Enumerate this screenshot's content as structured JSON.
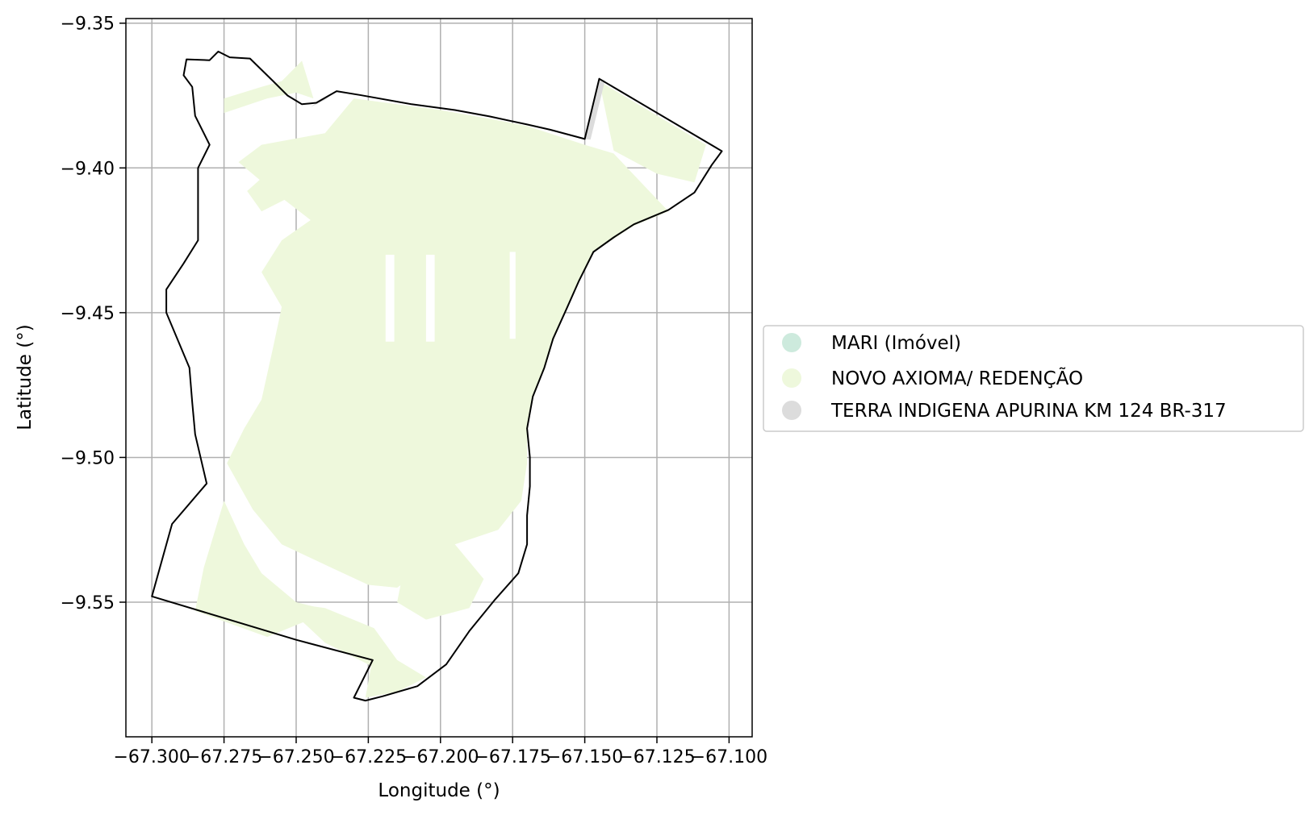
{
  "chart_data": {
    "type": "map",
    "xlabel": "Longitude (°)",
    "ylabel": "Latitude (°)",
    "xlim": [
      -67.309,
      -67.092
    ],
    "ylim": [
      -9.5965,
      -9.3484
    ],
    "x_ticks": [
      -67.3,
      -67.275,
      -67.25,
      -67.225,
      -67.2,
      -67.175,
      -67.15,
      -67.125,
      -67.1
    ],
    "x_tick_labels": [
      "−67.300",
      "−67.275",
      "−67.250",
      "−67.225",
      "−67.200",
      "−67.175",
      "−67.150",
      "−67.125",
      "−67.100"
    ],
    "y_ticks": [
      -9.35,
      -9.4,
      -9.45,
      -9.5,
      -9.55
    ],
    "y_tick_labels": [
      "−9.35",
      "−9.40",
      "−9.45",
      "−9.50",
      "−9.55"
    ],
    "grid": true,
    "legend_position": "outside-right",
    "legend": [
      {
        "label": "MARI (Imóvel)",
        "color": "#cdeadd"
      },
      {
        "label": "NOVO AXIOMA/ REDENÇÃO",
        "color": "#eef8dc"
      },
      {
        "label": "TERRA INDIGENA APURINA KM 124 BR-317",
        "color": "#dcdcdc"
      }
    ],
    "boundary_outline": [
      [
        -67.236,
        -9.3735
      ],
      [
        -67.228,
        -9.3748
      ],
      [
        -67.21,
        -9.378
      ],
      [
        -67.195,
        -9.38
      ],
      [
        -67.183,
        -9.3822
      ],
      [
        -67.17,
        -9.385
      ],
      [
        -67.162,
        -9.3868
      ],
      [
        -67.15,
        -9.39
      ],
      [
        -67.145,
        -9.3692
      ],
      [
        -67.1025,
        -9.3942
      ],
      [
        -67.106,
        -9.399
      ],
      [
        -67.112,
        -9.4085
      ],
      [
        -67.121,
        -9.4145
      ],
      [
        -67.133,
        -9.4195
      ],
      [
        -67.14,
        -9.424
      ],
      [
        -67.147,
        -9.429
      ],
      [
        -67.152,
        -9.439
      ],
      [
        -67.156,
        -9.448
      ],
      [
        -67.161,
        -9.459
      ],
      [
        -67.164,
        -9.469
      ],
      [
        -67.168,
        -9.479
      ],
      [
        -67.17,
        -9.49
      ],
      [
        -67.169,
        -9.5
      ],
      [
        -67.169,
        -9.51
      ],
      [
        -67.17,
        -9.52
      ],
      [
        -67.17,
        -9.53
      ],
      [
        -67.173,
        -9.54
      ],
      [
        -67.181,
        -9.549
      ],
      [
        -67.19,
        -9.56
      ],
      [
        -67.198,
        -9.5715
      ],
      [
        -67.208,
        -9.579
      ],
      [
        -67.22,
        -9.5825
      ],
      [
        -67.226,
        -9.584
      ],
      [
        -67.23,
        -9.583
      ],
      [
        -67.2235,
        -9.57
      ],
      [
        -67.25,
        -9.563
      ],
      [
        -67.3,
        -9.548
      ],
      [
        -67.293,
        -9.523
      ],
      [
        -67.281,
        -9.509
      ],
      [
        -67.285,
        -9.492
      ],
      [
        -67.286,
        -9.481
      ],
      [
        -67.287,
        -9.469
      ],
      [
        -67.295,
        -9.45
      ],
      [
        -67.295,
        -9.442
      ],
      [
        -67.289,
        -9.433
      ],
      [
        -67.284,
        -9.425
      ],
      [
        -67.284,
        -9.4
      ],
      [
        -67.28,
        -9.392
      ],
      [
        -67.285,
        -9.382
      ],
      [
        -67.286,
        -9.372
      ],
      [
        -67.289,
        -9.368
      ],
      [
        -67.288,
        -9.3625
      ],
      [
        -67.28,
        -9.3628
      ],
      [
        -67.277,
        -9.3598
      ],
      [
        -67.273,
        -9.3618
      ],
      [
        -67.266,
        -9.3622
      ],
      [
        -67.258,
        -9.37
      ],
      [
        -67.253,
        -9.375
      ],
      [
        -67.248,
        -9.378
      ],
      [
        -67.243,
        -9.3775
      ],
      [
        -67.236,
        -9.3735
      ]
    ],
    "terra_indigena_slivers": [
      [
        [
          -67.243,
          -9.3775
        ],
        [
          -67.237,
          -9.374
        ],
        [
          -67.24,
          -9.3765
        ],
        [
          -67.245,
          -9.379
        ]
      ],
      [
        [
          -67.15,
          -9.39
        ],
        [
          -67.145,
          -9.3692
        ],
        [
          -67.143,
          -9.3698
        ],
        [
          -67.148,
          -9.3902
        ]
      ]
    ],
    "novo_axioma_polygons": [
      [
        [
          -67.248,
          -9.363
        ],
        [
          -67.255,
          -9.37
        ],
        [
          -67.262,
          -9.372
        ],
        [
          -67.275,
          -9.376
        ],
        [
          -67.275,
          -9.381
        ],
        [
          -67.26,
          -9.376
        ],
        [
          -67.25,
          -9.374
        ],
        [
          -67.244,
          -9.376
        ]
      ],
      [
        [
          -67.23,
          -9.376
        ],
        [
          -67.2,
          -9.38
        ],
        [
          -67.183,
          -9.383
        ],
        [
          -67.17,
          -9.3855
        ],
        [
          -67.15,
          -9.392
        ],
        [
          -67.14,
          -9.395
        ],
        [
          -67.121,
          -9.415
        ],
        [
          -67.133,
          -9.42
        ],
        [
          -67.147,
          -9.429
        ],
        [
          -67.152,
          -9.439
        ],
        [
          -67.156,
          -9.448
        ],
        [
          -67.161,
          -9.459
        ],
        [
          -67.164,
          -9.469
        ],
        [
          -67.168,
          -9.479
        ],
        [
          -67.17,
          -9.49
        ],
        [
          -67.17,
          -9.502
        ],
        [
          -67.172,
          -9.515
        ],
        [
          -67.18,
          -9.525
        ],
        [
          -67.195,
          -9.53
        ],
        [
          -67.205,
          -9.538
        ],
        [
          -67.215,
          -9.545
        ],
        [
          -67.225,
          -9.544
        ],
        [
          -67.238,
          -9.538
        ],
        [
          -67.255,
          -9.53
        ],
        [
          -67.265,
          -9.518
        ],
        [
          -67.274,
          -9.502
        ],
        [
          -67.268,
          -9.49
        ],
        [
          -67.262,
          -9.48
        ],
        [
          -67.258,
          -9.462
        ],
        [
          -67.255,
          -9.448
        ],
        [
          -67.262,
          -9.436
        ],
        [
          -67.255,
          -9.425
        ],
        [
          -67.245,
          -9.418
        ],
        [
          -67.258,
          -9.408
        ],
        [
          -67.27,
          -9.398
        ],
        [
          -67.262,
          -9.392
        ],
        [
          -67.24,
          -9.388
        ]
      ],
      [
        [
          -67.145,
          -9.37
        ],
        [
          -67.108,
          -9.392
        ],
        [
          -67.112,
          -9.405
        ],
        [
          -67.125,
          -9.402
        ],
        [
          -67.14,
          -9.394
        ]
      ],
      [
        [
          -67.258,
          -9.4
        ],
        [
          -67.252,
          -9.41
        ],
        [
          -67.262,
          -9.415
        ],
        [
          -67.267,
          -9.408
        ]
      ],
      [
        [
          -67.275,
          -9.515
        ],
        [
          -67.268,
          -9.53
        ],
        [
          -67.262,
          -9.54
        ],
        [
          -67.25,
          -9.55
        ],
        [
          -67.238,
          -9.553
        ],
        [
          -67.26,
          -9.562
        ],
        [
          -67.285,
          -9.553
        ],
        [
          -67.282,
          -9.538
        ]
      ],
      [
        [
          -67.255,
          -9.55
        ],
        [
          -67.24,
          -9.552
        ],
        [
          -67.223,
          -9.559
        ],
        [
          -67.215,
          -9.57
        ],
        [
          -67.205,
          -9.576
        ],
        [
          -67.215,
          -9.581
        ],
        [
          -67.226,
          -9.583
        ],
        [
          -67.224,
          -9.572
        ],
        [
          -67.24,
          -9.564
        ]
      ],
      [
        [
          -67.21,
          -9.525
        ],
        [
          -67.195,
          -9.53
        ],
        [
          -67.185,
          -9.542
        ],
        [
          -67.19,
          -9.552
        ],
        [
          -67.205,
          -9.556
        ],
        [
          -67.215,
          -9.55
        ]
      ]
    ],
    "novo_axioma_gaps": [
      [
        [
          -67.219,
          -9.43
        ],
        [
          -67.216,
          -9.43
        ],
        [
          -67.216,
          -9.46
        ],
        [
          -67.219,
          -9.46
        ]
      ],
      [
        [
          -67.205,
          -9.43
        ],
        [
          -67.202,
          -9.43
        ],
        [
          -67.202,
          -9.46
        ],
        [
          -67.205,
          -9.46
        ]
      ],
      [
        [
          -67.176,
          -9.429
        ],
        [
          -67.174,
          -9.429
        ],
        [
          -67.174,
          -9.459
        ],
        [
          -67.176,
          -9.459
        ]
      ]
    ]
  }
}
